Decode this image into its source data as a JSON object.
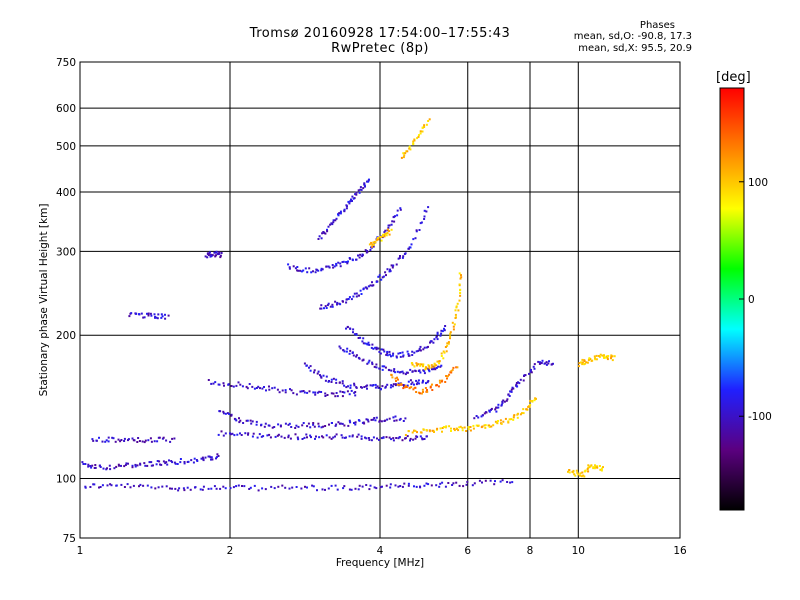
{
  "chart_data": {
    "type": "scatter",
    "title": "Tromsø 20160928 17:54:00–17:55:43",
    "subtitle": "RwPretec (8p)",
    "xlabel": "Frequency [MHz]",
    "ylabel": "Stationary phase Virtual Height [km]",
    "x_scale": "log",
    "y_scale": "log",
    "xlim": [
      1,
      16
    ],
    "ylim": [
      75,
      750
    ],
    "x_ticks": [
      1,
      2,
      4,
      6,
      8,
      10,
      16
    ],
    "x_tick_labels": [
      "1",
      "2",
      "4",
      "6",
      "8",
      "10",
      "16"
    ],
    "y_ticks": [
      75,
      100,
      200,
      300,
      400,
      500,
      600,
      750
    ],
    "y_tick_labels": [
      "75",
      "100",
      "200",
      "300",
      "400",
      "500",
      "600",
      "750"
    ],
    "grid": true,
    "colorbar": {
      "unit": "[deg]",
      "range": [
        -180,
        180
      ],
      "ticks": [
        100,
        0,
        -100
      ],
      "tick_labels": [
        "100",
        "0",
        "-100"
      ],
      "colors": [
        "#000000",
        "#5b0080",
        "#2020ff",
        "#00ffff",
        "#00ff00",
        "#ffff00",
        "#ff8000",
        "#ff0000"
      ]
    },
    "stats": {
      "heading": "Phases",
      "o_mode": "mean, sd,O: -90.8, 17.3",
      "x_mode": "mean, sd,X:  95.5, 20.9"
    },
    "traces": [
      {
        "name": "",
        "phase": -100,
        "points": [
          [
            1.0,
            97
          ],
          [
            1.2,
            97
          ],
          [
            1.5,
            96
          ],
          [
            1.8,
            96
          ],
          [
            2.2,
            96
          ],
          [
            2.8,
            96
          ],
          [
            3.5,
            96
          ],
          [
            4.2,
            97
          ],
          [
            5.0,
            97
          ],
          [
            6.0,
            98
          ],
          [
            7.5,
            99
          ]
        ]
      },
      {
        "name": "",
        "phase": -100,
        "points": [
          [
            1.0,
            108
          ],
          [
            1.1,
            106
          ],
          [
            1.25,
            107
          ],
          [
            1.4,
            108
          ],
          [
            1.55,
            109
          ],
          [
            1.75,
            110
          ],
          [
            1.9,
            112
          ]
        ]
      },
      {
        "name": "",
        "phase": -100,
        "points": [
          [
            1.05,
            121
          ],
          [
            1.2,
            121
          ],
          [
            1.35,
            121
          ],
          [
            1.55,
            121
          ]
        ]
      },
      {
        "name": "",
        "phase": -100,
        "points": [
          [
            1.9,
            125
          ],
          [
            2.2,
            124
          ],
          [
            2.6,
            123
          ],
          [
            3.0,
            123
          ],
          [
            3.5,
            123
          ],
          [
            4.0,
            122
          ],
          [
            4.5,
            122
          ],
          [
            5.0,
            123
          ]
        ]
      },
      {
        "name": "",
        "phase": -100,
        "points": [
          [
            1.9,
            140
          ],
          [
            2.1,
            133
          ],
          [
            2.4,
            129
          ],
          [
            2.8,
            130
          ],
          [
            3.2,
            130
          ],
          [
            3.6,
            132
          ],
          [
            4.0,
            134
          ],
          [
            4.5,
            134
          ]
        ]
      },
      {
        "name": "",
        "phase": -100,
        "points": [
          [
            1.8,
            160
          ],
          [
            2.1,
            158
          ],
          [
            2.4,
            155
          ],
          [
            2.8,
            152
          ],
          [
            3.2,
            151
          ],
          [
            3.6,
            152
          ]
        ]
      },
      {
        "name": "",
        "phase": -95,
        "points": [
          [
            2.8,
            175
          ],
          [
            3.1,
            163
          ],
          [
            3.4,
            158
          ],
          [
            3.8,
            156
          ],
          [
            4.2,
            157
          ],
          [
            4.6,
            160
          ],
          [
            5.0,
            160
          ]
        ]
      },
      {
        "name": "",
        "phase": -95,
        "points": [
          [
            3.3,
            190
          ],
          [
            3.6,
            180
          ],
          [
            4.0,
            172
          ],
          [
            4.4,
            168
          ],
          [
            4.9,
            168
          ],
          [
            5.3,
            175
          ]
        ]
      },
      {
        "name": "",
        "phase": -95,
        "points": [
          [
            3.4,
            210
          ],
          [
            3.7,
            195
          ],
          [
            4.0,
            186
          ],
          [
            4.3,
            182
          ],
          [
            4.7,
            185
          ],
          [
            5.1,
            195
          ],
          [
            5.4,
            210
          ]
        ]
      },
      {
        "name": "",
        "phase": -95,
        "points": [
          [
            2.6,
            280
          ],
          [
            2.9,
            275
          ],
          [
            3.2,
            280
          ],
          [
            3.5,
            290
          ],
          [
            3.8,
            305
          ],
          [
            4.1,
            335
          ],
          [
            4.4,
            375
          ]
        ]
      },
      {
        "name": "",
        "phase": -95,
        "points": [
          [
            3.0,
            230
          ],
          [
            3.3,
            235
          ],
          [
            3.6,
            245
          ],
          [
            3.9,
            260
          ],
          [
            4.2,
            280
          ],
          [
            4.6,
            310
          ],
          [
            5.0,
            380
          ]
        ]
      },
      {
        "name": "",
        "phase": -95,
        "points": [
          [
            3.0,
            320
          ],
          [
            3.2,
            345
          ],
          [
            3.4,
            375
          ],
          [
            3.6,
            400
          ],
          [
            3.8,
            430
          ]
        ]
      },
      {
        "name": "",
        "phase": -100,
        "points": [
          [
            1.78,
            296
          ],
          [
            1.85,
            298
          ],
          [
            1.92,
            296
          ]
        ]
      },
      {
        "name": "",
        "phase": -100,
        "points": [
          [
            1.25,
            222
          ],
          [
            1.38,
            221
          ],
          [
            1.5,
            220
          ]
        ]
      },
      {
        "name": "",
        "phase": 100,
        "points": [
          [
            4.6,
            175
          ],
          [
            4.9,
            172
          ],
          [
            5.2,
            175
          ],
          [
            5.5,
            195
          ],
          [
            5.7,
            230
          ],
          [
            5.8,
            275
          ]
        ]
      },
      {
        "name": "",
        "phase": 100,
        "points": [
          [
            4.5,
            125
          ],
          [
            5.0,
            127
          ],
          [
            5.5,
            128
          ],
          [
            6.0,
            128
          ],
          [
            6.6,
            130
          ],
          [
            7.2,
            133
          ],
          [
            7.8,
            140
          ],
          [
            8.2,
            150
          ]
        ]
      },
      {
        "name": "",
        "phase": 100,
        "points": [
          [
            3.8,
            310
          ],
          [
            4.0,
            320
          ],
          [
            4.2,
            335
          ]
        ]
      },
      {
        "name": "",
        "phase": 100,
        "points": [
          [
            4.4,
            470
          ],
          [
            4.7,
            520
          ],
          [
            5.0,
            570
          ]
        ]
      },
      {
        "name": "",
        "phase": 130,
        "points": [
          [
            4.2,
            165
          ],
          [
            4.5,
            155
          ],
          [
            4.9,
            153
          ],
          [
            5.3,
            160
          ],
          [
            5.7,
            175
          ]
        ]
      },
      {
        "name": "",
        "phase": -100,
        "points": [
          [
            6.2,
            135
          ],
          [
            6.8,
            140
          ],
          [
            7.2,
            150
          ],
          [
            7.6,
            160
          ],
          [
            8.3,
            176
          ],
          [
            8.9,
            176
          ]
        ]
      },
      {
        "name": "",
        "phase": 100,
        "points": [
          [
            9.5,
            105
          ],
          [
            10.1,
            102
          ],
          [
            10.6,
            107
          ],
          [
            11.2,
            105
          ]
        ]
      },
      {
        "name": "",
        "phase": 100,
        "points": [
          [
            10.0,
            175
          ],
          [
            10.5,
            178
          ],
          [
            11.2,
            182
          ],
          [
            11.8,
            180
          ]
        ]
      }
    ]
  }
}
